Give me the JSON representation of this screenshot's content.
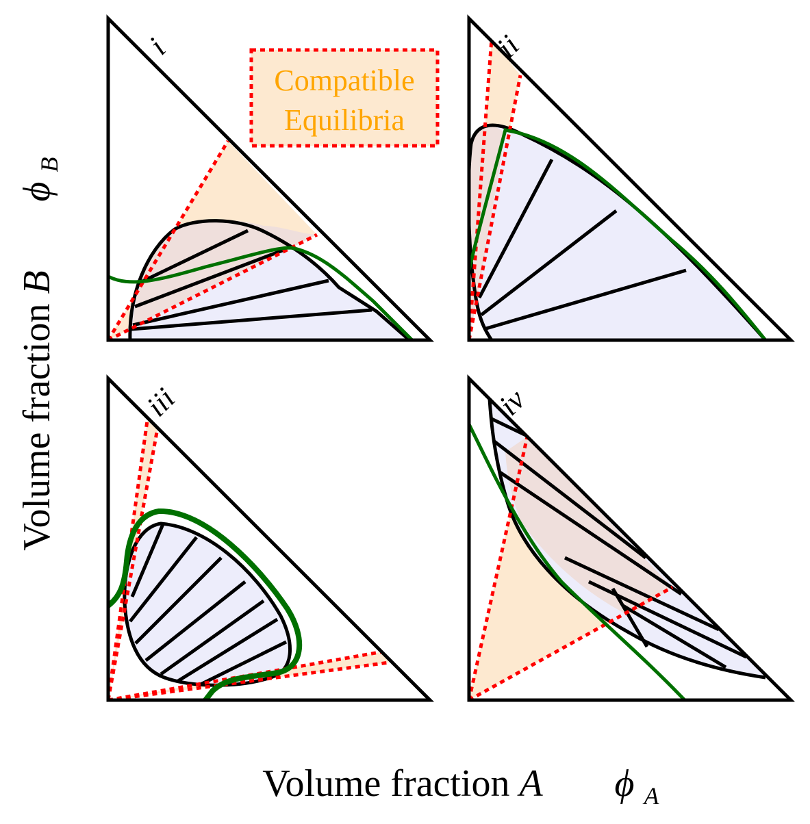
{
  "axes": {
    "y_label": "Volume fraction",
    "y_var": "B",
    "y_symbol": "ϕ",
    "y_subscript": "B",
    "x_label": "Volume fraction",
    "x_var": "A",
    "x_symbol": "ϕ",
    "x_subscript": "A"
  },
  "legend": {
    "line1": "Compatible",
    "line2": "Equilibria",
    "text_color": "#ffa500",
    "fill_color": "#fde9d0",
    "border_color": "#ff0000"
  },
  "colors": {
    "frame": "#000000",
    "binodal_fill": "#ededfb",
    "compatible_fill": "#fde9d0",
    "overlap_fill": "#efdfdc",
    "compatible_border": "#ff0000",
    "curve": "#007000"
  },
  "panels": [
    {
      "id": "i",
      "label": "i"
    },
    {
      "id": "ii",
      "label": "ii"
    },
    {
      "id": "iii",
      "label": "iii"
    },
    {
      "id": "iv",
      "label": "iv"
    }
  ]
}
